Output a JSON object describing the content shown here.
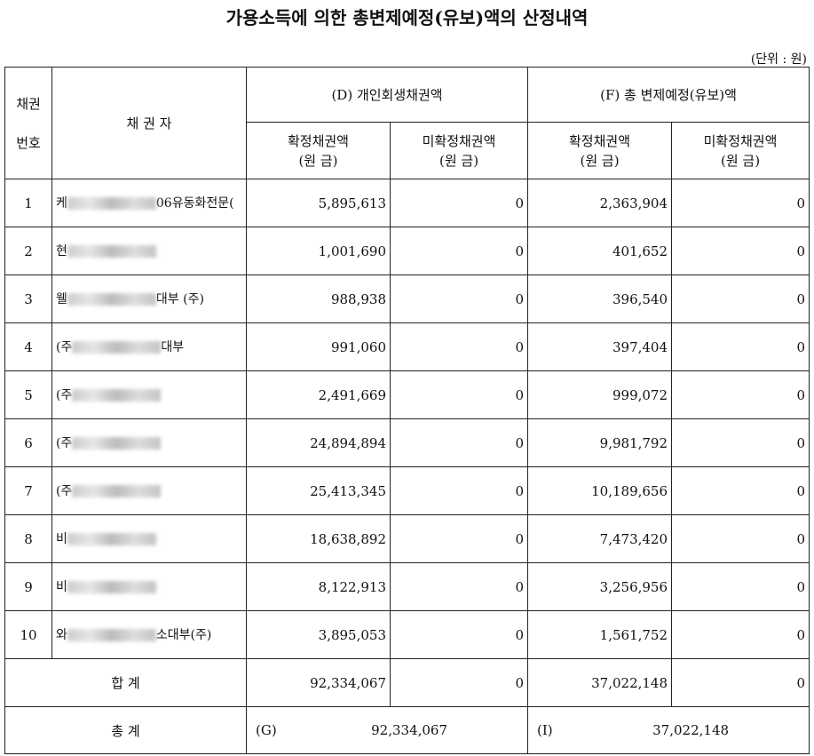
{
  "title": "가용소득에 의한 총변제예정(유보)액의 산정내역",
  "unit": "(단위 : 원)",
  "table": {
    "headers": {
      "number": [
        "채권",
        "번호"
      ],
      "creditor": "채 권 자",
      "group_d": "(D) 개인회생채권액",
      "group_f": "(F) 총 변제예정(유보)액",
      "d_confirmed": [
        "확정채권액",
        "(원   금)"
      ],
      "d_unconfirmed": [
        "미확정채권액",
        "(원   금)"
      ],
      "f_confirmed": [
        "확정채권액",
        "(원   금)"
      ],
      "f_unconfirmed": [
        "미확정채권액",
        "(원   금)"
      ]
    },
    "rows": [
      {
        "number": "1",
        "creditor": [
          "케",
          "06유동화전",
          "문("
        ],
        "d_confirmed": "5,895,613",
        "d_unconfirmed": "0",
        "f_confirmed": "2,363,904",
        "f_unconfirmed": "0"
      },
      {
        "number": "2",
        "creditor": [
          "현"
        ],
        "d_confirmed": "1,001,690",
        "d_unconfirmed": "0",
        "f_confirmed": "401,652",
        "f_unconfirmed": "0"
      },
      {
        "number": "3",
        "creditor": [
          "웰",
          "대부 (주)"
        ],
        "d_confirmed": "988,938",
        "d_unconfirmed": "0",
        "f_confirmed": "396,540",
        "f_unconfirmed": "0"
      },
      {
        "number": "4",
        "creditor": [
          "(주",
          "대부"
        ],
        "d_confirmed": "991,060",
        "d_unconfirmed": "0",
        "f_confirmed": "397,404",
        "f_unconfirmed": "0"
      },
      {
        "number": "5",
        "creditor": [
          "(주"
        ],
        "d_confirmed": "2,491,669",
        "d_unconfirmed": "0",
        "f_confirmed": "999,072",
        "f_unconfirmed": "0"
      },
      {
        "number": "6",
        "creditor": [
          "(주"
        ],
        "d_confirmed": "24,894,894",
        "d_unconfirmed": "0",
        "f_confirmed": "9,981,792",
        "f_unconfirmed": "0"
      },
      {
        "number": "7",
        "creditor": [
          "(주"
        ],
        "d_confirmed": "25,413,345",
        "d_unconfirmed": "0",
        "f_confirmed": "10,189,656",
        "f_unconfirmed": "0"
      },
      {
        "number": "8",
        "creditor": [
          "비"
        ],
        "d_confirmed": "18,638,892",
        "d_unconfirmed": "0",
        "f_confirmed": "7,473,420",
        "f_unconfirmed": "0"
      },
      {
        "number": "9",
        "creditor": [
          "비"
        ],
        "d_confirmed": "8,122,913",
        "d_unconfirmed": "0",
        "f_confirmed": "3,256,956",
        "f_unconfirmed": "0"
      },
      {
        "number": "10",
        "creditor": [
          "와",
          "소대부(주)"
        ],
        "d_confirmed": "3,895,053",
        "d_unconfirmed": "0",
        "f_confirmed": "1,561,752",
        "f_unconfirmed": "0"
      }
    ],
    "subtotal": {
      "label": "합    계",
      "d_confirmed": "92,334,067",
      "d_unconfirmed": "0",
      "f_confirmed": "37,022,148",
      "f_unconfirmed": "0"
    },
    "grand_total": {
      "label": "총    계",
      "g_label": "(G)",
      "g_value": "92,334,067",
      "i_label": "(I)",
      "i_value": "37,022,148"
    }
  }
}
